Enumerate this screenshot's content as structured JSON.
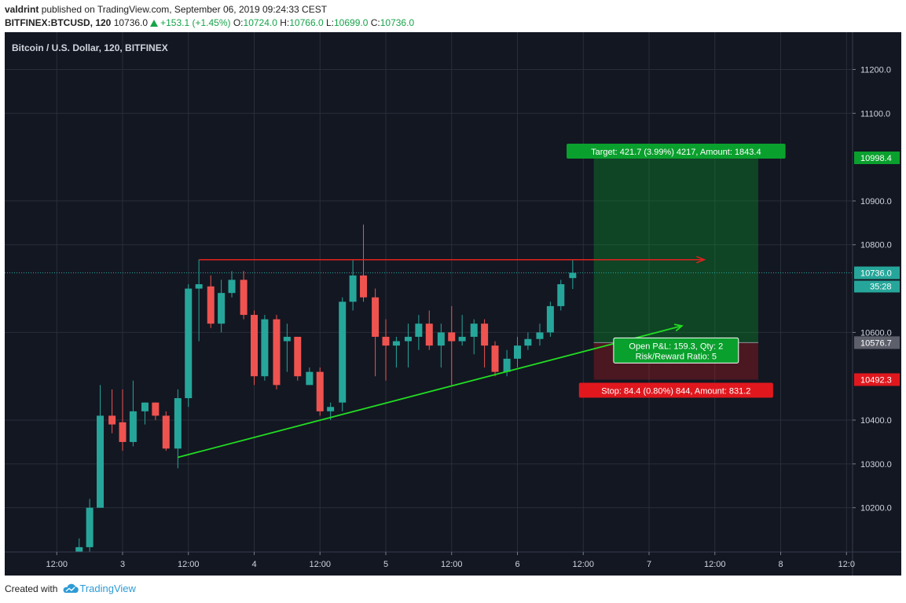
{
  "header": {
    "author": "valdrint",
    "published_text": "published on TradingView.com, September 06, 2019 09:24:33 CEST",
    "symbol": "BITFINEX:BTCUSD, 120",
    "last": "10736.0",
    "change": "+153.1 (+1.45%)",
    "o_label": "O:",
    "o_value": "10724.0",
    "h_label": "H:",
    "h_value": "10766.0",
    "l_label": "L:",
    "l_value": "10699.0",
    "c_label": "C:",
    "c_value": "10736.0"
  },
  "footer": {
    "created_with": "Created with",
    "brand": "TradingView"
  },
  "colors": {
    "background": "#131722",
    "up": "#26a69a",
    "down": "#ef5350",
    "target": "#0aa02d",
    "stop": "#e0181e",
    "trendline": "#22dd22",
    "resistance": "#e0231e"
  },
  "chart_data": {
    "type": "candlestick",
    "title": "Bitcoin / U.S. Dollar, 120, BITFINEX",
    "ylim": [
      10110,
      11290
    ],
    "y_ticks": [
      11200,
      11100,
      10900,
      10800,
      10600,
      10400,
      10300,
      10200
    ],
    "y_tick_labels": [
      "11200.0",
      "11100.0",
      "10900.0",
      "10800.0",
      "10600.0",
      "10400.0",
      "10300.0",
      "10200.0"
    ],
    "x_ticks": [
      {
        "label": "12:00",
        "day": 2.5
      },
      {
        "label": "3",
        "day": 3.0
      },
      {
        "label": "12:00",
        "day": 3.5
      },
      {
        "label": "4",
        "day": 4.0
      },
      {
        "label": "12:00",
        "day": 4.5
      },
      {
        "label": "5",
        "day": 5.0
      },
      {
        "label": "12:00",
        "day": 5.5
      },
      {
        "label": "6",
        "day": 6.0
      },
      {
        "label": "12:00",
        "day": 6.5
      },
      {
        "label": "7",
        "day": 7.0
      },
      {
        "label": "12:00",
        "day": 7.5
      },
      {
        "label": "8",
        "day": 8.0
      },
      {
        "label": "12:0",
        "day": 8.5
      }
    ],
    "candles": [
      {
        "day": 2.67,
        "o": 10100,
        "h": 10130,
        "l": 10100,
        "c": 10110
      },
      {
        "day": 2.75,
        "o": 10110,
        "h": 10220,
        "l": 10100,
        "c": 10200
      },
      {
        "day": 2.83,
        "o": 10200,
        "h": 10480,
        "l": 10200,
        "c": 10410
      },
      {
        "day": 2.92,
        "o": 10410,
        "h": 10470,
        "l": 10370,
        "c": 10390
      },
      {
        "day": 3.0,
        "o": 10395,
        "h": 10470,
        "l": 10330,
        "c": 10350
      },
      {
        "day": 3.08,
        "o": 10350,
        "h": 10490,
        "l": 10340,
        "c": 10420
      },
      {
        "day": 3.17,
        "o": 10420,
        "h": 10440,
        "l": 10390,
        "c": 10440
      },
      {
        "day": 3.25,
        "o": 10440,
        "h": 10440,
        "l": 10400,
        "c": 10410
      },
      {
        "day": 3.33,
        "o": 10410,
        "h": 10420,
        "l": 10330,
        "c": 10335
      },
      {
        "day": 3.42,
        "o": 10335,
        "h": 10470,
        "l": 10290,
        "c": 10450
      },
      {
        "day": 3.5,
        "o": 10450,
        "h": 10710,
        "l": 10430,
        "c": 10700
      },
      {
        "day": 3.58,
        "o": 10700,
        "h": 10766,
        "l": 10580,
        "c": 10710
      },
      {
        "day": 3.67,
        "o": 10705,
        "h": 10730,
        "l": 10610,
        "c": 10620
      },
      {
        "day": 3.75,
        "o": 10620,
        "h": 10720,
        "l": 10600,
        "c": 10690
      },
      {
        "day": 3.83,
        "o": 10690,
        "h": 10740,
        "l": 10680,
        "c": 10720
      },
      {
        "day": 3.92,
        "o": 10720,
        "h": 10740,
        "l": 10630,
        "c": 10640
      },
      {
        "day": 4.0,
        "o": 10640,
        "h": 10650,
        "l": 10480,
        "c": 10500
      },
      {
        "day": 4.08,
        "o": 10500,
        "h": 10640,
        "l": 10490,
        "c": 10630
      },
      {
        "day": 4.17,
        "o": 10630,
        "h": 10640,
        "l": 10470,
        "c": 10480
      },
      {
        "day": 4.25,
        "o": 10580,
        "h": 10620,
        "l": 10510,
        "c": 10590
      },
      {
        "day": 4.33,
        "o": 10590,
        "h": 10590,
        "l": 10490,
        "c": 10500
      },
      {
        "day": 4.42,
        "o": 10480,
        "h": 10520,
        "l": 10480,
        "c": 10510
      },
      {
        "day": 4.5,
        "o": 10510,
        "h": 10520,
        "l": 10410,
        "c": 10420
      },
      {
        "day": 4.58,
        "o": 10420,
        "h": 10440,
        "l": 10400,
        "c": 10430
      },
      {
        "day": 4.67,
        "o": 10440,
        "h": 10680,
        "l": 10420,
        "c": 10670
      },
      {
        "day": 4.75,
        "o": 10670,
        "h": 10766,
        "l": 10650,
        "c": 10730
      },
      {
        "day": 4.83,
        "o": 10730,
        "h": 10846,
        "l": 10670,
        "c": 10680
      },
      {
        "day": 4.92,
        "o": 10680,
        "h": 10700,
        "l": 10500,
        "c": 10590
      },
      {
        "day": 5.0,
        "o": 10590,
        "h": 10630,
        "l": 10490,
        "c": 10570
      },
      {
        "day": 5.08,
        "o": 10570,
        "h": 10590,
        "l": 10520,
        "c": 10580
      },
      {
        "day": 5.17,
        "o": 10580,
        "h": 10620,
        "l": 10520,
        "c": 10590
      },
      {
        "day": 5.25,
        "o": 10590,
        "h": 10640,
        "l": 10560,
        "c": 10620
      },
      {
        "day": 5.33,
        "o": 10620,
        "h": 10650,
        "l": 10560,
        "c": 10570
      },
      {
        "day": 5.42,
        "o": 10570,
        "h": 10620,
        "l": 10520,
        "c": 10600
      },
      {
        "day": 5.5,
        "o": 10600,
        "h": 10660,
        "l": 10480,
        "c": 10580
      },
      {
        "day": 5.58,
        "o": 10580,
        "h": 10640,
        "l": 10570,
        "c": 10590
      },
      {
        "day": 5.67,
        "o": 10590,
        "h": 10630,
        "l": 10550,
        "c": 10620
      },
      {
        "day": 5.75,
        "o": 10620,
        "h": 10630,
        "l": 10520,
        "c": 10570
      },
      {
        "day": 5.83,
        "o": 10570,
        "h": 10580,
        "l": 10500,
        "c": 10510
      },
      {
        "day": 5.92,
        "o": 10510,
        "h": 10560,
        "l": 10500,
        "c": 10540
      },
      {
        "day": 6.0,
        "o": 10540,
        "h": 10590,
        "l": 10520,
        "c": 10570
      },
      {
        "day": 6.08,
        "o": 10570,
        "h": 10600,
        "l": 10560,
        "c": 10585
      },
      {
        "day": 6.17,
        "o": 10585,
        "h": 10620,
        "l": 10570,
        "c": 10600
      },
      {
        "day": 6.25,
        "o": 10600,
        "h": 10670,
        "l": 10590,
        "c": 10660
      },
      {
        "day": 6.33,
        "o": 10660,
        "h": 10720,
        "l": 10650,
        "c": 10710
      },
      {
        "day": 6.42,
        "o": 10724,
        "h": 10766,
        "l": 10699,
        "c": 10736
      }
    ],
    "resistance_line": {
      "from": {
        "day": 3.58,
        "price": 10766
      },
      "to": {
        "day": 7.42,
        "price": 10766
      }
    },
    "trend_line": {
      "from": {
        "day": 3.42,
        "price": 10315
      },
      "to": {
        "day": 7.25,
        "price": 10615
      }
    },
    "position": {
      "entry": 10576.7,
      "target": 10998.4,
      "stop": 10492.3,
      "start_day": 6.58,
      "end_day": 7.83,
      "target_label": "Target: 421.7 (3.99%) 4217, Amount: 1843.4",
      "stop_label": "Stop: 84.4 (0.80%) 844, Amount: 831.2",
      "pnl_label": "Open P&L: 159.3, Qty: 2",
      "rr_label": "Risk/Reward Ratio: 5"
    },
    "price_tags": [
      {
        "value": 10998.4,
        "label": "10998.4",
        "kind": "target"
      },
      {
        "value": 10736.0,
        "label": "10736.0",
        "kind": "last"
      },
      {
        "value": 10576.7,
        "label": "10576.7",
        "kind": "entry"
      },
      {
        "value": 10492.3,
        "label": "10492.3",
        "kind": "stop"
      }
    ],
    "countdown": "35:28"
  }
}
